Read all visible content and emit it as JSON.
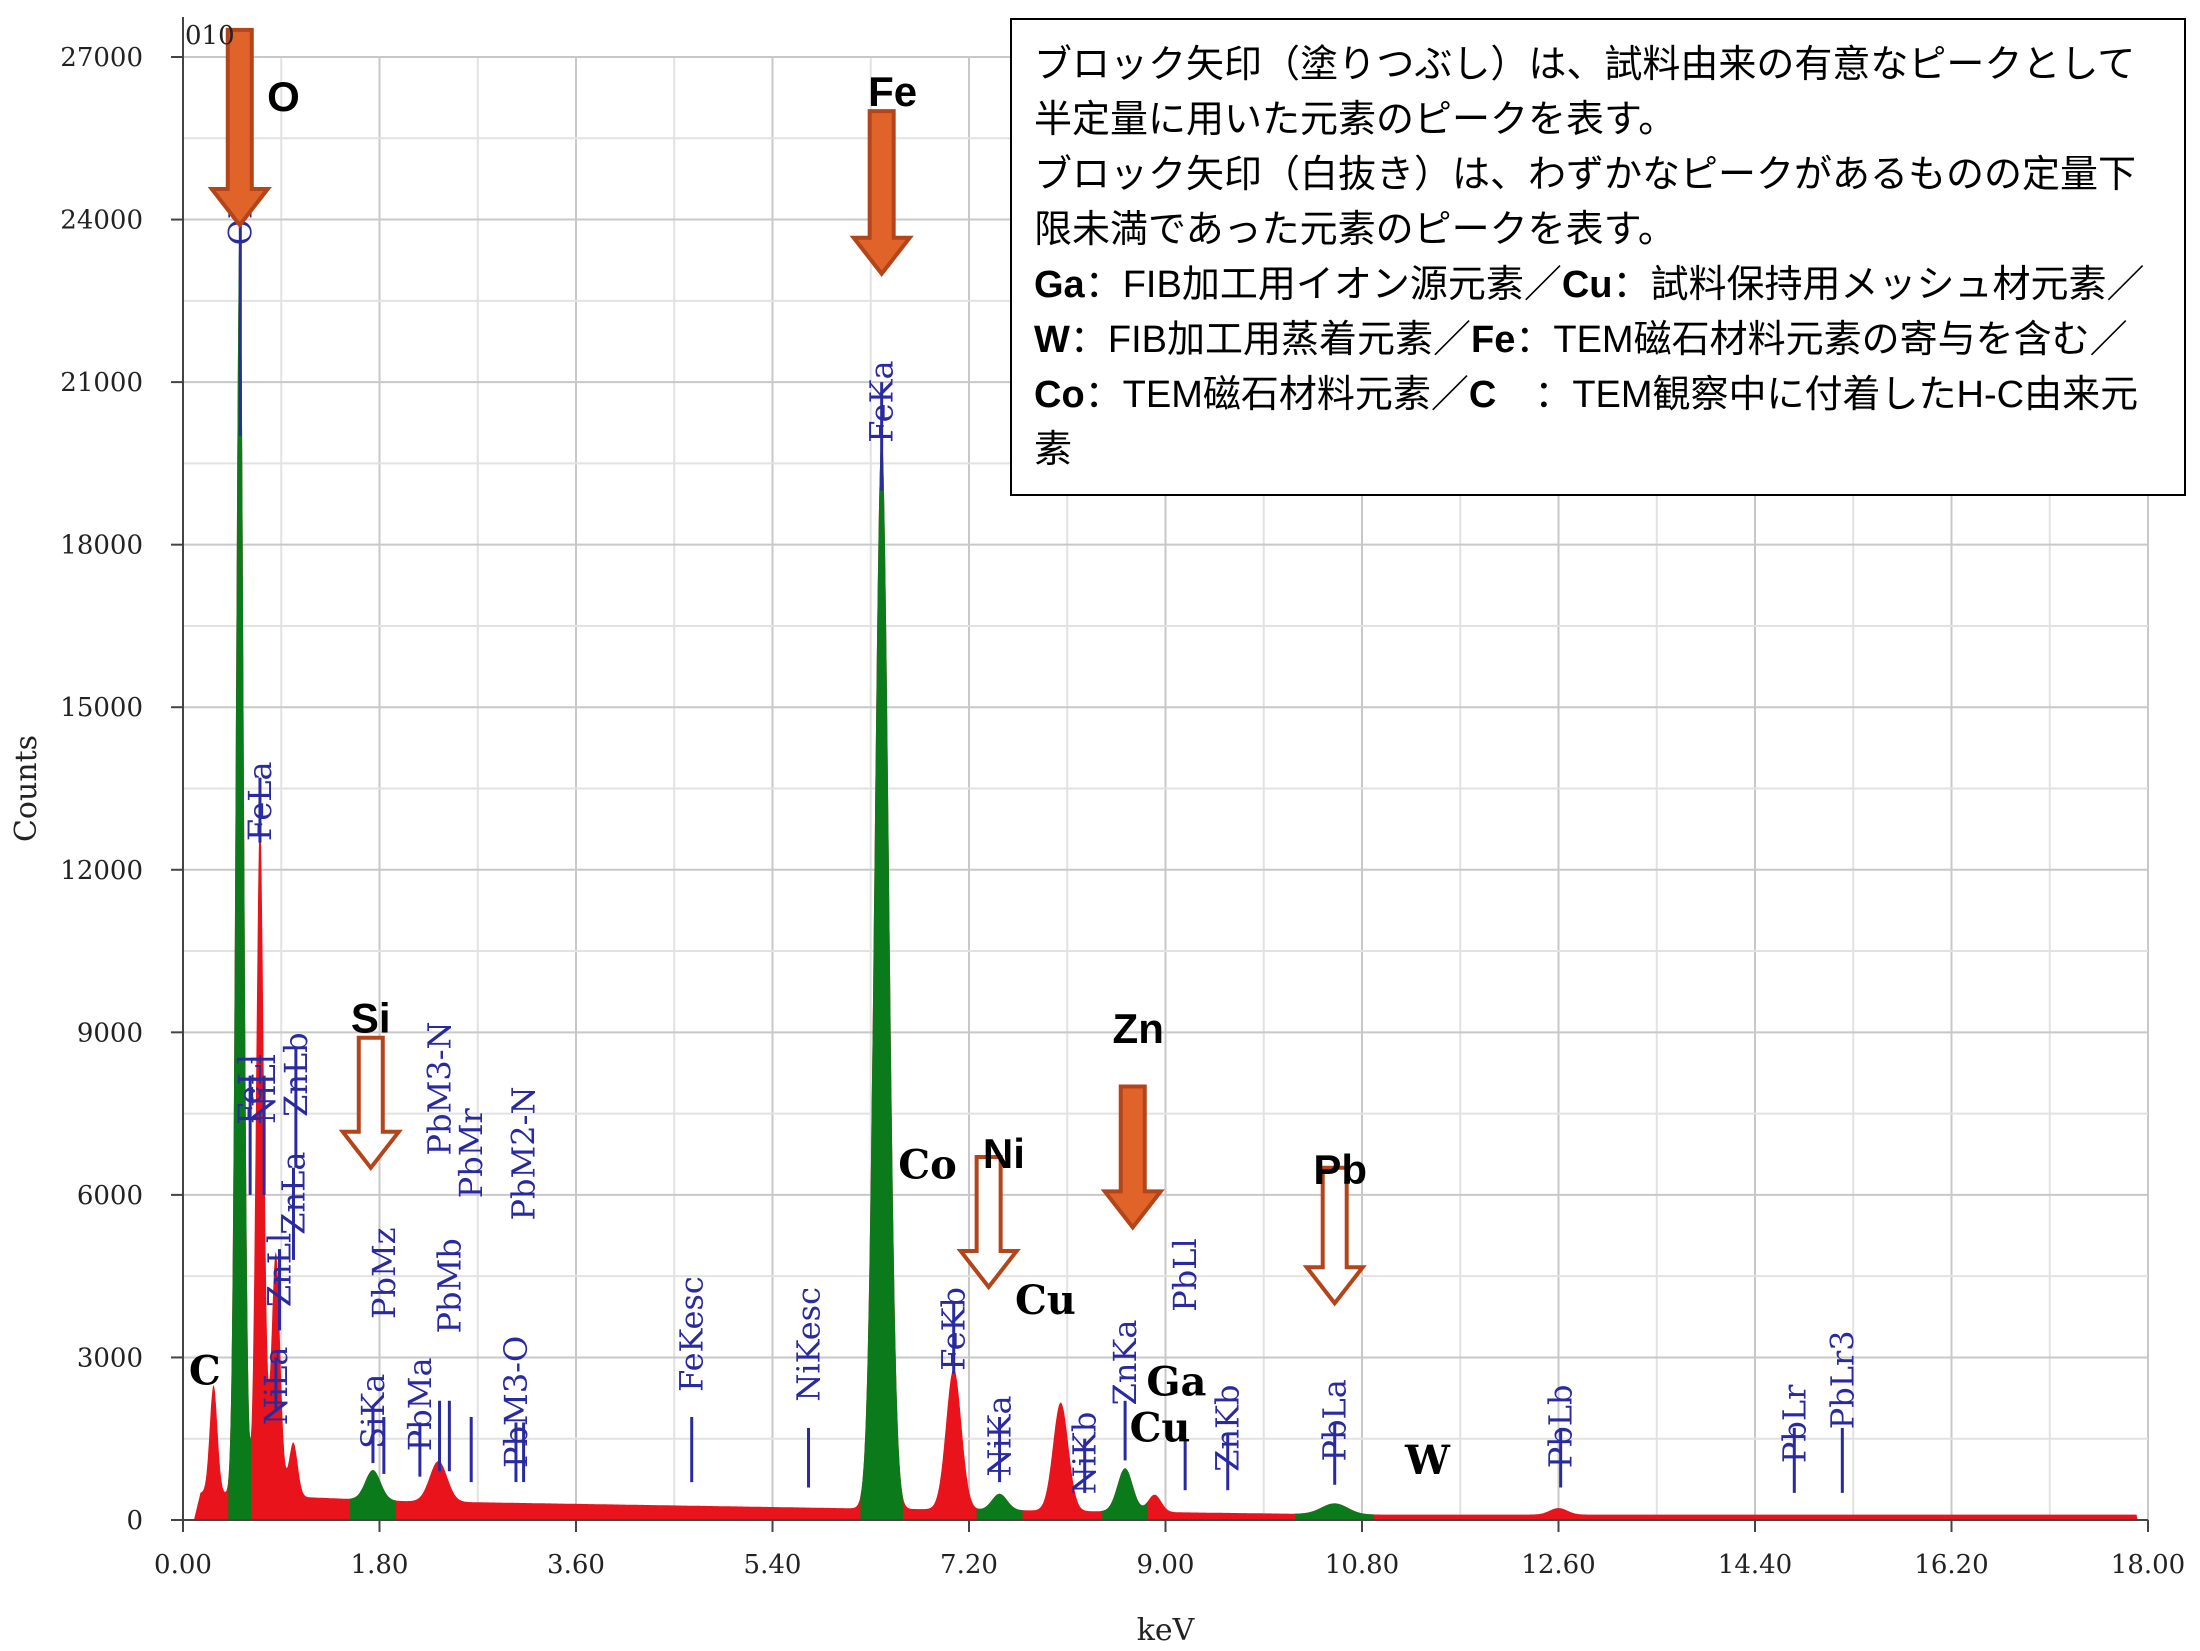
{
  "chart_data": {
    "type": "line",
    "xlabel": "keV",
    "ylabel": "Counts",
    "xlim": [
      0,
      18
    ],
    "ylim": [
      0,
      27000
    ],
    "x_ticks": [
      "0.00",
      "1.80",
      "3.60",
      "5.40",
      "7.20",
      "9.00",
      "10.80",
      "12.60",
      "14.40",
      "16.20",
      "18.00"
    ],
    "y_ticks": [
      "0",
      "3000",
      "6000",
      "9000",
      "12000",
      "15000",
      "18000",
      "21000",
      "24000",
      "27000"
    ],
    "grid": true,
    "corner_label": "010",
    "colors": {
      "spectrum": "#e8131b",
      "quantified_peaks": "#0b7a1a",
      "line_markers": "#2a2aa0",
      "arrow": "#e0642a",
      "arrow_stroke": "#b4451a"
    },
    "peaks": [
      {
        "x": 0.28,
        "y": 2000,
        "w": 0.035,
        "group": "red"
      },
      {
        "x": 0.52,
        "y": 23500,
        "w": 0.035,
        "group": "green"
      },
      {
        "x": 0.705,
        "y": 12500,
        "w": 0.035,
        "group": "red"
      },
      {
        "x": 0.85,
        "y": 4500,
        "w": 0.04,
        "group": "red"
      },
      {
        "x": 1.01,
        "y": 1000,
        "w": 0.04,
        "group": "red"
      },
      {
        "x": 1.74,
        "y": 550,
        "w": 0.07,
        "group": "green"
      },
      {
        "x": 2.34,
        "y": 750,
        "w": 0.08,
        "group": "red"
      },
      {
        "x": 6.4,
        "y": 19800,
        "w": 0.065,
        "group": "green"
      },
      {
        "x": 7.06,
        "y": 2600,
        "w": 0.07,
        "group": "red"
      },
      {
        "x": 7.48,
        "y": 300,
        "w": 0.07,
        "group": "green"
      },
      {
        "x": 8.04,
        "y": 2000,
        "w": 0.07,
        "group": "red"
      },
      {
        "x": 8.63,
        "y": 800,
        "w": 0.07,
        "group": "green"
      },
      {
        "x": 8.9,
        "y": 320,
        "w": 0.06,
        "group": "red"
      },
      {
        "x": 10.55,
        "y": 200,
        "w": 0.12,
        "group": "green"
      },
      {
        "x": 12.6,
        "y": 120,
        "w": 0.08,
        "group": "red"
      }
    ],
    "line_markers": [
      {
        "label": "OKa",
        "x": 0.525,
        "top": 24500,
        "bottom": 20000,
        "label_y": 24800
      },
      {
        "label": "FeLa",
        "x": 0.705,
        "top": 13700,
        "bottom": 12500,
        "label_y": 14000
      },
      {
        "label": "FeLl",
        "x": 0.615,
        "top": 8200,
        "bottom": 6000,
        "label_y": 8600
      },
      {
        "label": "NiLl",
        "x": 0.743,
        "top": 8200,
        "bottom": 6000,
        "label_y": 8600
      },
      {
        "label": "ZnLl",
        "x": 0.884,
        "top": 5000,
        "bottom": 3500,
        "label_y": 5300
      },
      {
        "label": "NiLa",
        "x": 0.851,
        "top": 3000,
        "bottom": 2000,
        "label_y": 3200
      },
      {
        "label": "ZnLa",
        "x": 1.012,
        "top": 6500,
        "bottom": 4800,
        "label_y": 6800
      },
      {
        "label": "ZnLb",
        "x": 1.034,
        "top": 8700,
        "bottom": 6500,
        "label_y": 9000
      },
      {
        "label": "SiKa",
        "x": 1.74,
        "top": 2100,
        "bottom": 1050,
        "label_y": 2700
      },
      {
        "label": "PbMz",
        "x": 1.84,
        "top": 1900,
        "bottom": 850,
        "label_y": 5400
      },
      {
        "label": "PbMa",
        "x": 2.17,
        "top": 1800,
        "bottom": 800,
        "label_y": 3000
      },
      {
        "label": "PbMb",
        "x": 2.44,
        "top": 2200,
        "bottom": 900,
        "label_y": 5200
      },
      {
        "label": "PbM3-N",
        "x": 2.35,
        "top": 2200,
        "bottom": 900,
        "label_y": 9200
      },
      {
        "label": "PbMr",
        "x": 2.64,
        "top": 1900,
        "bottom": 700,
        "label_y": 7600
      },
      {
        "label": "PbM3-O",
        "x": 3.05,
        "top": 1800,
        "bottom": 700,
        "label_y": 3400
      },
      {
        "label": "PbM2-N",
        "x": 3.12,
        "top": 1800,
        "bottom": 700,
        "label_y": 8000
      },
      {
        "label": "FeKesc",
        "x": 4.66,
        "top": 1900,
        "bottom": 700,
        "label_y": 4500
      },
      {
        "label": "NiKesc",
        "x": 5.73,
        "top": 1700,
        "bottom": 600,
        "label_y": 4300
      },
      {
        "label": "FeKa",
        "x": 6.4,
        "top": 21000,
        "bottom": 19000,
        "label_y": 21400
      },
      {
        "label": "FeKb",
        "x": 7.06,
        "top": 4000,
        "bottom": 2700,
        "label_y": 4300
      },
      {
        "label": "NiKa",
        "x": 7.48,
        "top": 1900,
        "bottom": 700,
        "label_y": 2300
      },
      {
        "label": "NiKb",
        "x": 8.26,
        "top": 1500,
        "bottom": 500,
        "label_y": 2000
      },
      {
        "label": "ZnKa",
        "x": 8.63,
        "top": 2200,
        "bottom": 1100,
        "label_y": 3700
      },
      {
        "label": "PbLl",
        "x": 9.18,
        "top": 1500,
        "bottom": 550,
        "label_y": 5200
      },
      {
        "label": "ZnKb",
        "x": 9.57,
        "top": 1600,
        "bottom": 550,
        "label_y": 2500
      },
      {
        "label": "PbLa",
        "x": 10.55,
        "top": 1800,
        "bottom": 650,
        "label_y": 2600
      },
      {
        "label": "PbLb",
        "x": 12.62,
        "top": 1700,
        "bottom": 600,
        "label_y": 2500
      },
      {
        "label": "PbLr",
        "x": 14.76,
        "top": 1700,
        "bottom": 500,
        "label_y": 2500
      },
      {
        "label": "PbLr3",
        "x": 15.2,
        "top": 1700,
        "bottom": 500,
        "label_y": 3500
      }
    ],
    "element_labels": [
      {
        "text": "O",
        "x": 0.92,
        "y": 26000,
        "style": "sans"
      },
      {
        "text": "Fe",
        "x": 6.5,
        "y": 26100,
        "style": "sans"
      },
      {
        "text": "Si",
        "x": 1.72,
        "y": 9000,
        "style": "sans"
      },
      {
        "text": "Co",
        "x": 6.82,
        "y": 6300,
        "style": "serif"
      },
      {
        "text": "Ni",
        "x": 7.52,
        "y": 6500,
        "style": "sans"
      },
      {
        "text": "Zn",
        "x": 8.75,
        "y": 8800,
        "style": "sans"
      },
      {
        "text": "Pb",
        "x": 10.6,
        "y": 6200,
        "style": "sans"
      },
      {
        "text": "Cu",
        "x": 7.9,
        "y": 3800,
        "style": "serif"
      },
      {
        "text": "C",
        "x": 0.2,
        "y": 2500,
        "style": "serif"
      },
      {
        "text": "Ga",
        "x": 9.1,
        "y": 2300,
        "style": "serif"
      },
      {
        "text": "Cu",
        "x": 8.95,
        "y": 1450,
        "style": "serif"
      },
      {
        "text": "W",
        "x": 11.4,
        "y": 850,
        "style": "serif"
      }
    ],
    "arrows": [
      {
        "x": 0.52,
        "top": 27500,
        "tip": 23900,
        "filled": true
      },
      {
        "x": 6.4,
        "top": 26000,
        "tip": 23000,
        "filled": true
      },
      {
        "x": 1.72,
        "top": 8900,
        "tip": 6500,
        "filled": false
      },
      {
        "x": 7.38,
        "top": 6700,
        "tip": 4300,
        "filled": false
      },
      {
        "x": 8.7,
        "top": 8000,
        "tip": 5400,
        "filled": true
      },
      {
        "x": 10.55,
        "top": 6500,
        "tip": 4000,
        "filled": false
      }
    ]
  },
  "note": {
    "p1": "ブロック矢印（塗りつぶし）は、試料由来の有意なピークとして半定量に用いた元素のピークを表す。",
    "p2": "ブロック矢印（白抜き）は、わずかなピークがあるものの定量下限未満であった元素のピークを表す。",
    "ga": "Ga",
    "ga_desc": "：FIB加工用イオン源元素／",
    "cu": "Cu",
    "cu_desc": "：試料保持用メッシュ材元素／",
    "w": "W",
    "w_desc": "：FIB加工用蒸着元素／",
    "fe": "Fe",
    "fe_desc": "：TEM磁石材料元素の寄与を含む／",
    "co": "Co",
    "co_desc": "：TEM磁石材料元素／",
    "c": "C",
    "c_desc": "　：TEM観察中に付着したH-C由来元素"
  }
}
